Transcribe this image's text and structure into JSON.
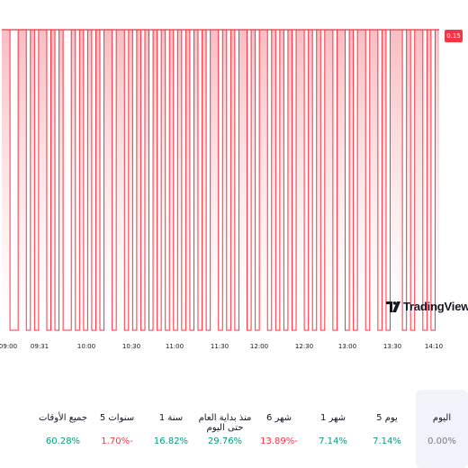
{
  "chart_data": {
    "type": "area",
    "symbol_price_label": "0.15",
    "x_ticks": [
      "09:00",
      "09:31",
      "10:00",
      "10:30",
      "11:00",
      "11:30",
      "12:00",
      "12:30",
      "13:00",
      "13:30",
      "14:10"
    ],
    "ylim": [
      0,
      1
    ],
    "grid": false,
    "series": [
      {
        "values": [
          1,
          1,
          0,
          0,
          1,
          1,
          0,
          1,
          0,
          1,
          1,
          0,
          1,
          0,
          1,
          0,
          0,
          1,
          0,
          1,
          0,
          1,
          0,
          1,
          0,
          1,
          1,
          0,
          1,
          1,
          0,
          1,
          0,
          1,
          0,
          1,
          0,
          1,
          0,
          1,
          0,
          1,
          0,
          1,
          0,
          1,
          0,
          1,
          0,
          1,
          0,
          1,
          1,
          0,
          1,
          0,
          1,
          0,
          1,
          1,
          0,
          1,
          0,
          1,
          1,
          0,
          1,
          0,
          1,
          0,
          1,
          0,
          1,
          1,
          0,
          1,
          0,
          1,
          0,
          1,
          1,
          0,
          1,
          1,
          0,
          1,
          0,
          1,
          1,
          0,
          1,
          1,
          0,
          1,
          0,
          1,
          1,
          1,
          0,
          1,
          0,
          1,
          1,
          0,
          1,
          0,
          1,
          1
        ]
      }
    ],
    "colors": {
      "line": "#f23645",
      "fill_top": "#f7b1b7",
      "fill_bottom": "#ffffff",
      "badge": "#f23645"
    }
  },
  "logo_text": "TradingView",
  "periods": [
    {
      "label": "اليوم",
      "value": "0.00%",
      "color": "#787b86",
      "selected": true
    },
    {
      "label": "5 يوم",
      "value": "7.14%",
      "color": "#089981",
      "selected": false
    },
    {
      "label": "1 شهر",
      "value": "7.14%",
      "color": "#089981",
      "selected": false
    },
    {
      "label": "6 شهر",
      "value": "13.89%-",
      "color": "#f23645",
      "selected": false
    },
    {
      "label": "منذ بداية العام حتى اليوم",
      "value": "29.76%",
      "color": "#089981",
      "selected": false
    },
    {
      "label": "1 سنة",
      "value": "16.82%",
      "color": "#089981",
      "selected": false
    },
    {
      "label": "5 سنوات",
      "value": "1.70%-",
      "color": "#f23645",
      "selected": false
    },
    {
      "label": "جميع الأوقات",
      "value": "60.28%",
      "color": "#089981",
      "selected": false
    }
  ]
}
